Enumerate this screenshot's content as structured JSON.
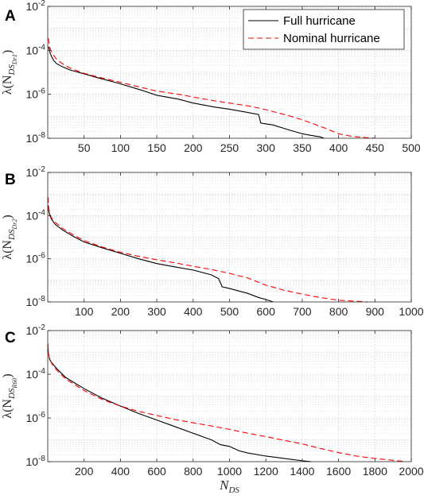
{
  "chart_data": [
    {
      "type": "line",
      "panel_label": "A",
      "title": "",
      "xlabel": "",
      "ylabel": "λ(N_{DS_{Dr1}})",
      "ylabel_main": "λ(N",
      "ylabel_sub": "DS",
      "ylabel_subsub": "Dr1",
      "y_scale": "log",
      "xlim": [
        0,
        500
      ],
      "ylim": [
        1e-08,
        0.01
      ],
      "xticks": [
        50,
        100,
        150,
        200,
        250,
        300,
        350,
        400,
        450,
        500
      ],
      "grid": true,
      "legend": "top-right",
      "series": [
        {
          "name": "Full hurricane",
          "color": "#000000",
          "style": "solid",
          "x": [
            1,
            2,
            3,
            5,
            8,
            12,
            20,
            30,
            50,
            70,
            100,
            130,
            150,
            180,
            200,
            230,
            250,
            270,
            290,
            293,
            295,
            300,
            310,
            330,
            350,
            365,
            375,
            380
          ],
          "y": [
            0.00015,
            0.00011,
            8e-05,
            5.5e-05,
            3.5e-05,
            2.5e-05,
            1.8e-05,
            1.3e-05,
            8.5e-06,
            5.5e-06,
            3e-06,
            1.5e-06,
            9e-07,
            6e-07,
            4e-07,
            2.6e-07,
            2.1e-07,
            1.6e-07,
            1.2e-07,
            5e-08,
            4.8e-08,
            4.5e-08,
            4e-08,
            2.5e-08,
            1.6e-08,
            1.3e-08,
            1.15e-08,
            1e-08
          ]
        },
        {
          "name": "Nominal hurricane",
          "color": "#ff0000",
          "style": "dashed",
          "x": [
            1,
            2,
            3,
            5,
            8,
            12,
            20,
            30,
            50,
            70,
            100,
            130,
            150,
            180,
            200,
            230,
            250,
            280,
            300,
            330,
            350,
            380,
            400,
            420,
            450
          ],
          "y": [
            0.00035,
            0.0002,
            0.00013,
            9e-05,
            6e-05,
            4e-05,
            2.5e-05,
            1.6e-05,
            9e-06,
            6e-06,
            3.5e-06,
            2e-06,
            1.4e-06,
            1e-06,
            7.5e-07,
            5e-07,
            4e-07,
            2.8e-07,
            2e-07,
            1.1e-07,
            7e-08,
            3e-08,
            1.6e-08,
            1.2e-08,
            1e-08
          ]
        }
      ]
    },
    {
      "type": "line",
      "panel_label": "B",
      "title": "",
      "xlabel": "",
      "ylabel": "λ(N_{DS_{Dr2}})",
      "ylabel_main": "λ(N",
      "ylabel_sub": "DS",
      "ylabel_subsub": "Dr2",
      "y_scale": "log",
      "xlim": [
        0,
        1000
      ],
      "ylim": [
        1e-08,
        0.01
      ],
      "xticks": [
        100,
        200,
        300,
        400,
        500,
        600,
        700,
        800,
        900,
        1000
      ],
      "grid": true,
      "legend": "none",
      "series": [
        {
          "name": "Full hurricane",
          "color": "#000000",
          "style": "solid",
          "x": [
            1,
            3,
            6,
            10,
            20,
            40,
            70,
            100,
            150,
            200,
            250,
            300,
            350,
            400,
            450,
            470,
            480,
            500,
            550,
            580,
            600,
            620
          ],
          "y": [
            0.0003,
            0.00016,
            0.0001,
            7e-05,
            4e-05,
            2.2e-05,
            1.1e-05,
            6e-06,
            3.2e-06,
            1.8e-06,
            1e-06,
            6e-07,
            4.2e-07,
            3e-07,
            1.8e-07,
            1.2e-07,
            5e-08,
            4.2e-08,
            2.5e-08,
            1.6e-08,
            1.3e-08,
            1e-08
          ]
        },
        {
          "name": "Nominal hurricane",
          "color": "#ff0000",
          "style": "dashed",
          "x": [
            1,
            3,
            6,
            10,
            20,
            40,
            70,
            100,
            150,
            200,
            250,
            300,
            350,
            400,
            450,
            500,
            550,
            600,
            650,
            700,
            750,
            800,
            880
          ],
          "y": [
            0.0007,
            0.0002,
            0.00012,
            8e-05,
            5e-05,
            2.6e-05,
            1.3e-05,
            7e-06,
            3.5e-06,
            2e-06,
            1.3e-06,
            9e-07,
            6.5e-07,
            4.5e-07,
            3.2e-07,
            2.1e-07,
            1.3e-07,
            6e-08,
            3.5e-08,
            2.3e-08,
            1.6e-08,
            1.2e-08,
            1e-08
          ]
        }
      ]
    },
    {
      "type": "line",
      "panel_label": "C",
      "title": "",
      "xlabel": "N_DS",
      "xlabel_main": "N",
      "xlabel_sub": "DS",
      "ylabel": "λ(N_{DS_{R60}})",
      "ylabel_main": "λ(N",
      "ylabel_sub": "DS",
      "ylabel_subsub": "R60",
      "y_scale": "log",
      "xlim": [
        0,
        2000
      ],
      "ylim": [
        1e-08,
        0.01
      ],
      "xticks": [
        200,
        400,
        600,
        800,
        1000,
        1200,
        1400,
        1600,
        1800,
        2000
      ],
      "grid": true,
      "legend": "none",
      "series": [
        {
          "name": "Full hurricane",
          "color": "#000000",
          "style": "solid",
          "x": [
            1,
            5,
            10,
            20,
            50,
            100,
            200,
            300,
            400,
            500,
            600,
            700,
            800,
            900,
            950,
            1000,
            1050,
            1100,
            1200,
            1300,
            1400,
            1450
          ],
          "y": [
            0.0015,
            0.0008,
            0.0005,
            0.00035,
            0.00018,
            7e-05,
            2.2e-05,
            8e-06,
            3.5e-06,
            1.6e-06,
            8e-07,
            4e-07,
            2e-07,
            1e-07,
            6e-08,
            5e-08,
            3.2e-08,
            2.5e-08,
            1.8e-08,
            1.4e-08,
            1.1e-08,
            1e-08
          ]
        },
        {
          "name": "Nominal hurricane",
          "color": "#ff0000",
          "style": "dashed",
          "x": [
            1,
            5,
            10,
            20,
            50,
            100,
            200,
            300,
            400,
            500,
            600,
            700,
            800,
            900,
            1000,
            1100,
            1200,
            1300,
            1400,
            1500,
            1600,
            1700,
            1800,
            1900,
            1970
          ],
          "y": [
            0.0025,
            0.0008,
            0.0005,
            0.00033,
            0.00015,
            6e-05,
            1.8e-05,
            7e-06,
            3.5e-06,
            2e-06,
            1.3e-06,
            8.5e-07,
            6e-07,
            4.3e-07,
            3e-07,
            2e-07,
            1.4e-07,
            9.5e-08,
            6.5e-08,
            4e-08,
            2.6e-08,
            1.8e-08,
            1.4e-08,
            1.15e-08,
            1e-08
          ]
        }
      ]
    }
  ]
}
